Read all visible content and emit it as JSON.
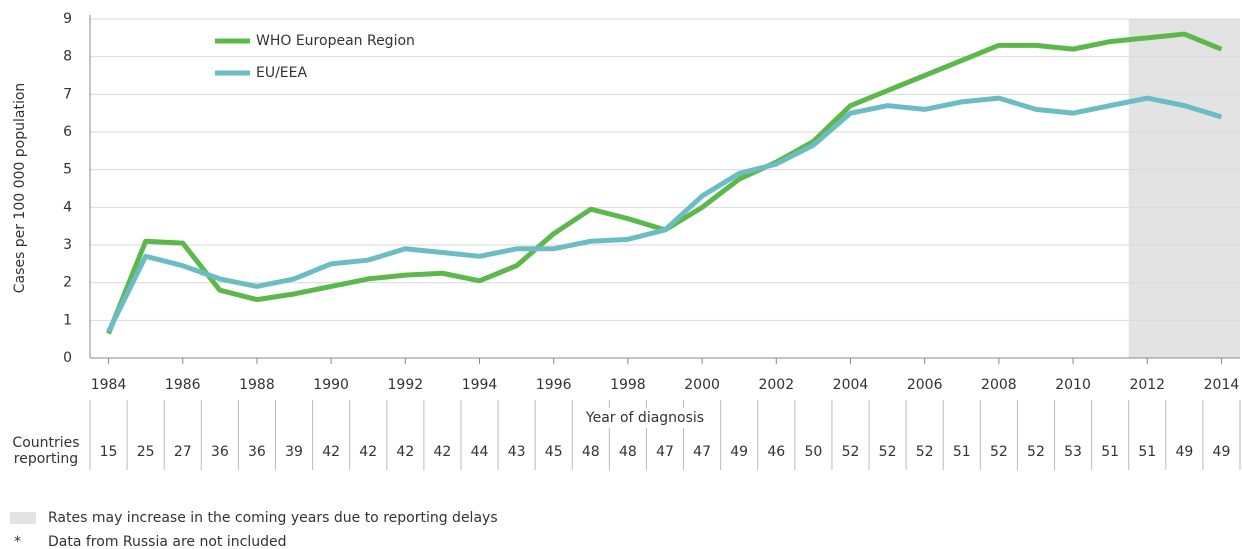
{
  "chart_data": {
    "type": "line",
    "y_label": "Cases per 100 000 population",
    "x_label": "Year of diagnosis",
    "x": [
      1984,
      1985,
      1986,
      1987,
      1988,
      1989,
      1990,
      1991,
      1992,
      1993,
      1994,
      1995,
      1996,
      1997,
      1998,
      1999,
      2000,
      2001,
      2002,
      2003,
      2004,
      2005,
      2006,
      2007,
      2008,
      2009,
      2010,
      2011,
      2012,
      2013,
      2014
    ],
    "series": [
      {
        "name": "WHO European Region",
        "color": "#5cb84a",
        "values": [
          0.65,
          3.1,
          3.05,
          1.8,
          1.55,
          1.7,
          1.9,
          2.1,
          2.2,
          2.25,
          2.05,
          2.45,
          3.3,
          3.95,
          3.7,
          3.4,
          4.0,
          4.75,
          5.2,
          5.75,
          6.7,
          7.1,
          7.5,
          7.9,
          8.3,
          8.3,
          8.2,
          8.4,
          8.5,
          8.6,
          8.2
        ]
      },
      {
        "name": "EU/EEA",
        "color": "#6bbdc3",
        "values": [
          0.7,
          2.7,
          2.45,
          2.1,
          1.9,
          2.1,
          2.5,
          2.6,
          2.9,
          2.8,
          2.7,
          2.9,
          2.9,
          3.1,
          3.15,
          3.4,
          4.3,
          4.9,
          5.15,
          5.65,
          6.5,
          6.7,
          6.6,
          6.8,
          6.9,
          6.6,
          6.5,
          6.7,
          6.9,
          6.7,
          6.4
        ]
      }
    ],
    "xlim": [
      1983.5,
      2014.5
    ],
    "xticks": [
      1984,
      1986,
      1988,
      1990,
      1992,
      1994,
      1996,
      1998,
      2000,
      2002,
      2004,
      2006,
      2008,
      2010,
      2012,
      2014
    ],
    "ylim": [
      0,
      9
    ],
    "yticks": [
      0,
      1,
      2,
      3,
      4,
      5,
      6,
      7,
      8,
      9
    ],
    "grid": true,
    "shaded_range": [
      2011.5,
      2014.5
    ],
    "shade_color": "#e3e3e3",
    "table_label": [
      "Countries",
      "reporting"
    ],
    "countries_reporting": [
      15,
      25,
      27,
      36,
      36,
      39,
      42,
      42,
      42,
      42,
      44,
      43,
      45,
      48,
      48,
      47,
      47,
      49,
      46,
      50,
      52,
      52,
      52,
      51,
      52,
      52,
      53,
      51,
      51,
      49,
      49
    ],
    "notes": [
      {
        "symbol": "",
        "text": "Rates may increase in the coming years due to reporting delays"
      },
      {
        "symbol": "*",
        "text": "Data from Russia are not included"
      }
    ]
  }
}
